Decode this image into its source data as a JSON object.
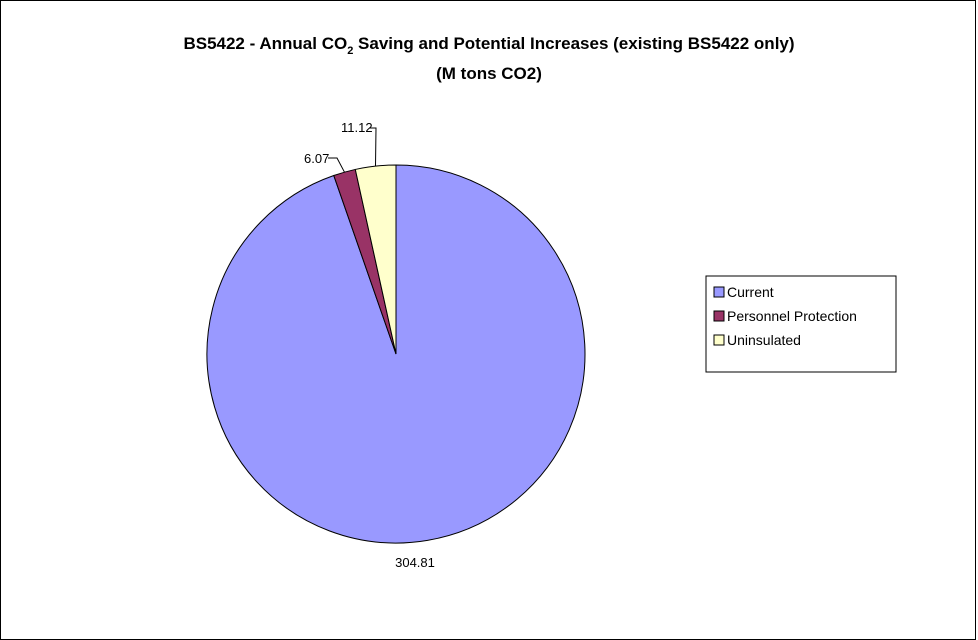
{
  "chart_data": {
    "type": "pie",
    "title_line1_part1": "BS5422 - Annual CO",
    "title_line1_sub": "2",
    "title_line1_part2": " Saving and Potential Increases (existing BS5422 only)",
    "title_line2": "(M tons CO2)",
    "slices": [
      {
        "label": "Current",
        "value": 304.81,
        "value_label": "304.81",
        "color": "#9999ff"
      },
      {
        "label": "Personnel Protection",
        "value": 6.07,
        "value_label": "6.07",
        "color": "#993366"
      },
      {
        "label": "Uninsulated",
        "value": 11.12,
        "value_label": "11.12",
        "color": "#ffffcc"
      }
    ],
    "start_angle": "12 o'clock",
    "direction": "clockwise",
    "legend_position": "right",
    "slice_border_color": "#000000"
  }
}
